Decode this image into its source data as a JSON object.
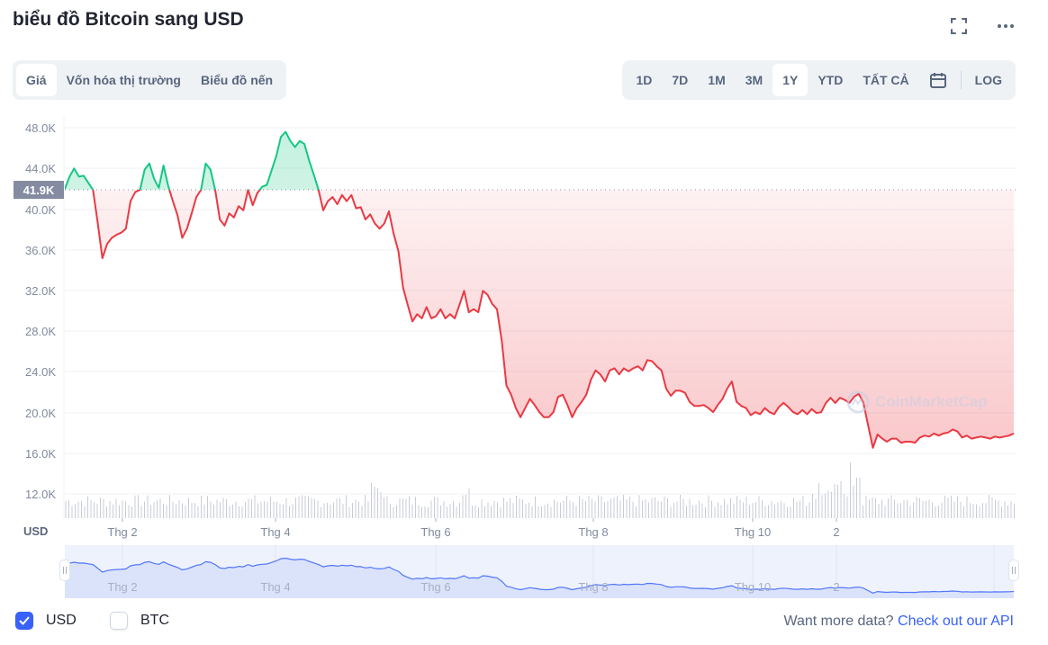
{
  "header": {
    "title": "biểu đồ Bitcoin sang USD",
    "icons": [
      "fullscreen-icon",
      "more-options-icon"
    ]
  },
  "chart_type_tabs": [
    {
      "label": "Giá",
      "active": true
    },
    {
      "label": "Vốn hóa thị trường",
      "active": false
    },
    {
      "label": "Biểu đồ nến",
      "active": false
    }
  ],
  "range_tabs": [
    {
      "label": "1D",
      "active": false
    },
    {
      "label": "7D",
      "active": false
    },
    {
      "label": "1M",
      "active": false
    },
    {
      "label": "3M",
      "active": false
    },
    {
      "label": "1Y",
      "active": true
    },
    {
      "label": "YTD",
      "active": false
    },
    {
      "label": "TẤT CẢ",
      "active": false
    }
  ],
  "calendar_icon": "calendar-icon",
  "log_label": "LOG",
  "current_price_label": "41.9K",
  "axis_unit_label": "USD",
  "watermark": "CoinMarketCap",
  "legend": {
    "usd": {
      "label": "USD",
      "checked": true
    },
    "btc": {
      "label": "BTC",
      "checked": false
    }
  },
  "footer": {
    "prefix": "Want more data?",
    "link": "Check out our API"
  },
  "colors": {
    "up": "#16c784",
    "down": "#ea3943",
    "accent": "#3861fb",
    "navigator_line": "#3861fb"
  },
  "chart_data": {
    "type": "area",
    "title": "biểu đồ Bitcoin sang USD",
    "xlabel": "",
    "ylabel": "USD",
    "ylim": [
      10000,
      49000
    ],
    "yticks": [
      "48.0K",
      "44.0K",
      "40.0K",
      "36.0K",
      "32.0K",
      "28.0K",
      "24.0K",
      "20.0K",
      "16.0K",
      "12.0K"
    ],
    "xticks": [
      "Thg 2",
      "Thg 4",
      "Thg 6",
      "Thg 8",
      "Thg 10",
      "2"
    ],
    "baseline": 41900,
    "grid": true,
    "legend": [
      "USD",
      "BTC"
    ],
    "series": [
      {
        "name": "Price (USD)",
        "approx_values_k": [
          42.0,
          43.2,
          44.0,
          43.2,
          43.3,
          42.6,
          41.9,
          38.7,
          35.2,
          36.6,
          37.2,
          37.5,
          37.7,
          38.1,
          40.8,
          41.7,
          41.9,
          43.9,
          44.5,
          43.0,
          42.1,
          44.3,
          42.3,
          40.8,
          39.4,
          37.2,
          38.1,
          39.6,
          41.2,
          41.9,
          44.5,
          43.9,
          41.9,
          39.0,
          38.4,
          39.6,
          39.2,
          40.3,
          39.9,
          41.9,
          40.4,
          41.6,
          42.2,
          42.4,
          43.8,
          45.2,
          47.1,
          47.6,
          46.7,
          46.1,
          46.7,
          46.4,
          44.8,
          43.4,
          41.9,
          39.9,
          40.8,
          41.2,
          40.5,
          41.4,
          40.8,
          41.4,
          40.1,
          40.2,
          39.0,
          39.5,
          38.6,
          38.1,
          38.6,
          39.8,
          37.6,
          35.9,
          32.3,
          30.6,
          29.0,
          29.7,
          29.3,
          30.4,
          29.3,
          29.5,
          30.2,
          29.3,
          29.7,
          29.3,
          30.6,
          32.0,
          29.9,
          30.2,
          29.9,
          32.0,
          31.6,
          30.7,
          30.2,
          27.1,
          22.7,
          21.8,
          20.5,
          19.6,
          20.5,
          21.4,
          20.8,
          20.1,
          19.6,
          19.6,
          20.1,
          21.6,
          21.8,
          20.8,
          19.6,
          20.5,
          21.1,
          21.8,
          23.3,
          24.2,
          23.8,
          23.1,
          24.2,
          24.4,
          23.8,
          24.4,
          24.1,
          24.4,
          24.6,
          24.2,
          25.2,
          25.1,
          24.6,
          24.2,
          22.4,
          21.7,
          22.2,
          22.2,
          22.0,
          21.1,
          20.7,
          20.7,
          20.8,
          20.5,
          20.1,
          20.8,
          21.4,
          22.4,
          23.1,
          21.1,
          20.7,
          20.5,
          19.8,
          20.1,
          19.9,
          20.5,
          20.1,
          19.9,
          20.6,
          21.0,
          20.6,
          20.1,
          19.9,
          20.3,
          19.9,
          20.4,
          20.0,
          20.1,
          21.0,
          21.5,
          21.0,
          21.5,
          21.3,
          21.0,
          21.6,
          21.9,
          21.0,
          18.8,
          16.6,
          17.9,
          17.5,
          17.2,
          17.5,
          17.5,
          17.1,
          17.2,
          17.2,
          17.1,
          17.6,
          17.8,
          17.7,
          18.0,
          17.8,
          18.0,
          18.1,
          18.4,
          18.2,
          17.6,
          17.8,
          17.5,
          17.6,
          17.7,
          17.6,
          17.5,
          17.7,
          17.6,
          17.7,
          17.8,
          18.0
        ]
      },
      {
        "name": "Volume",
        "note": "grey bars along bottom, spike near '2' (Nov)"
      }
    ]
  }
}
